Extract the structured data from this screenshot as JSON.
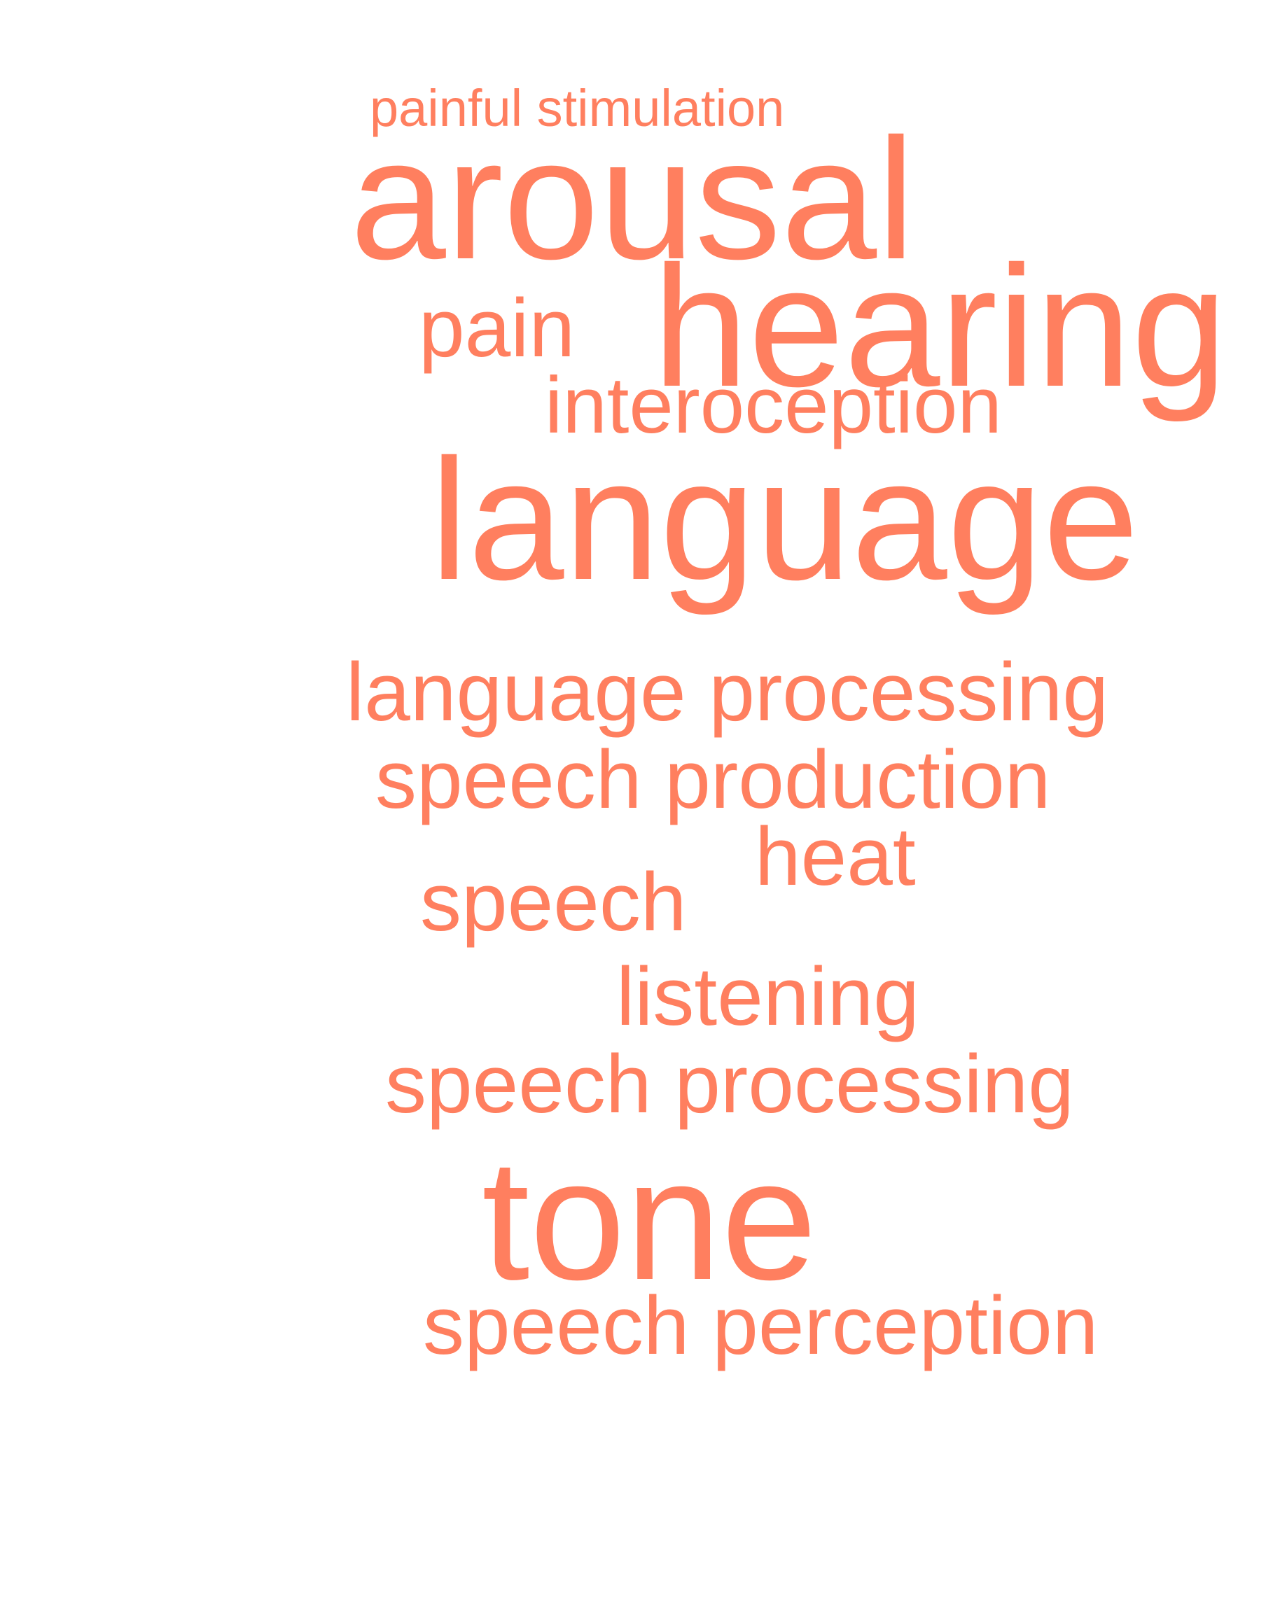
{
  "cloud": {
    "color": "#FF7F5F",
    "words": [
      {
        "id": "painful-stimulation",
        "text": "painful stimulation"
      },
      {
        "id": "arousal",
        "text": "arousal"
      },
      {
        "id": "pain",
        "text": "pain"
      },
      {
        "id": "hearing",
        "text": "hearing"
      },
      {
        "id": "interoception",
        "text": "interoception"
      },
      {
        "id": "language",
        "text": "language"
      },
      {
        "id": "language-processing",
        "text": "language processing"
      },
      {
        "id": "speech-production",
        "text": "speech production"
      },
      {
        "id": "heat",
        "text": "heat"
      },
      {
        "id": "speech",
        "text": "speech"
      },
      {
        "id": "listening",
        "text": "listening"
      },
      {
        "id": "speech-processing",
        "text": "speech processing"
      },
      {
        "id": "tone",
        "text": "tone"
      },
      {
        "id": "speech-perception",
        "text": "speech perception"
      }
    ]
  }
}
